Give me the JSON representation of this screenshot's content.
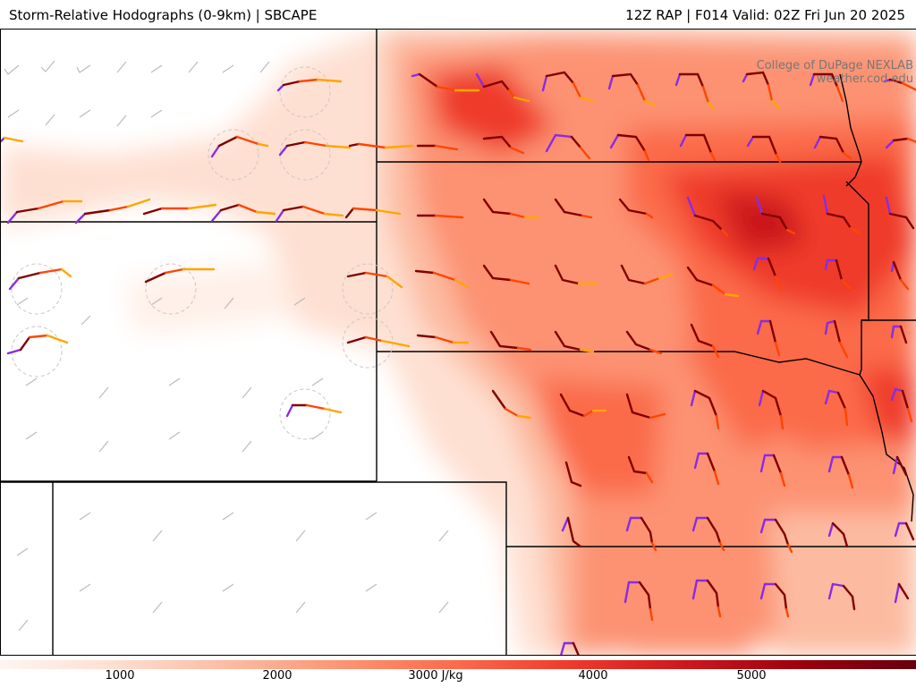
{
  "header": {
    "title": "Storm-Relative Hodographs (0-9km) | SBCAPE",
    "run_info": "12Z RAP | F014 Valid: 02Z Fri Jun 20 2025"
  },
  "credit": {
    "line1": "College of DuPage NEXLAB",
    "line2": "weather.cod.edu"
  },
  "colorbar": {
    "unit": "J/kg",
    "labels": [
      "1000",
      "2000",
      "3000 J/kg",
      "4000",
      "5000"
    ],
    "values": [
      1000,
      2000,
      3000,
      4000,
      5000
    ],
    "range": [
      250,
      6000
    ],
    "colors": [
      "#fff5f0",
      "#fee0d2",
      "#fcbba1",
      "#fc9272",
      "#fb6a4a",
      "#ef3b2c",
      "#cb181d",
      "#99000d",
      "#67000d"
    ]
  },
  "hodograph_colors": [
    "#8a2be2",
    "#800000",
    "#ff4500",
    "#ffa500"
  ]
}
